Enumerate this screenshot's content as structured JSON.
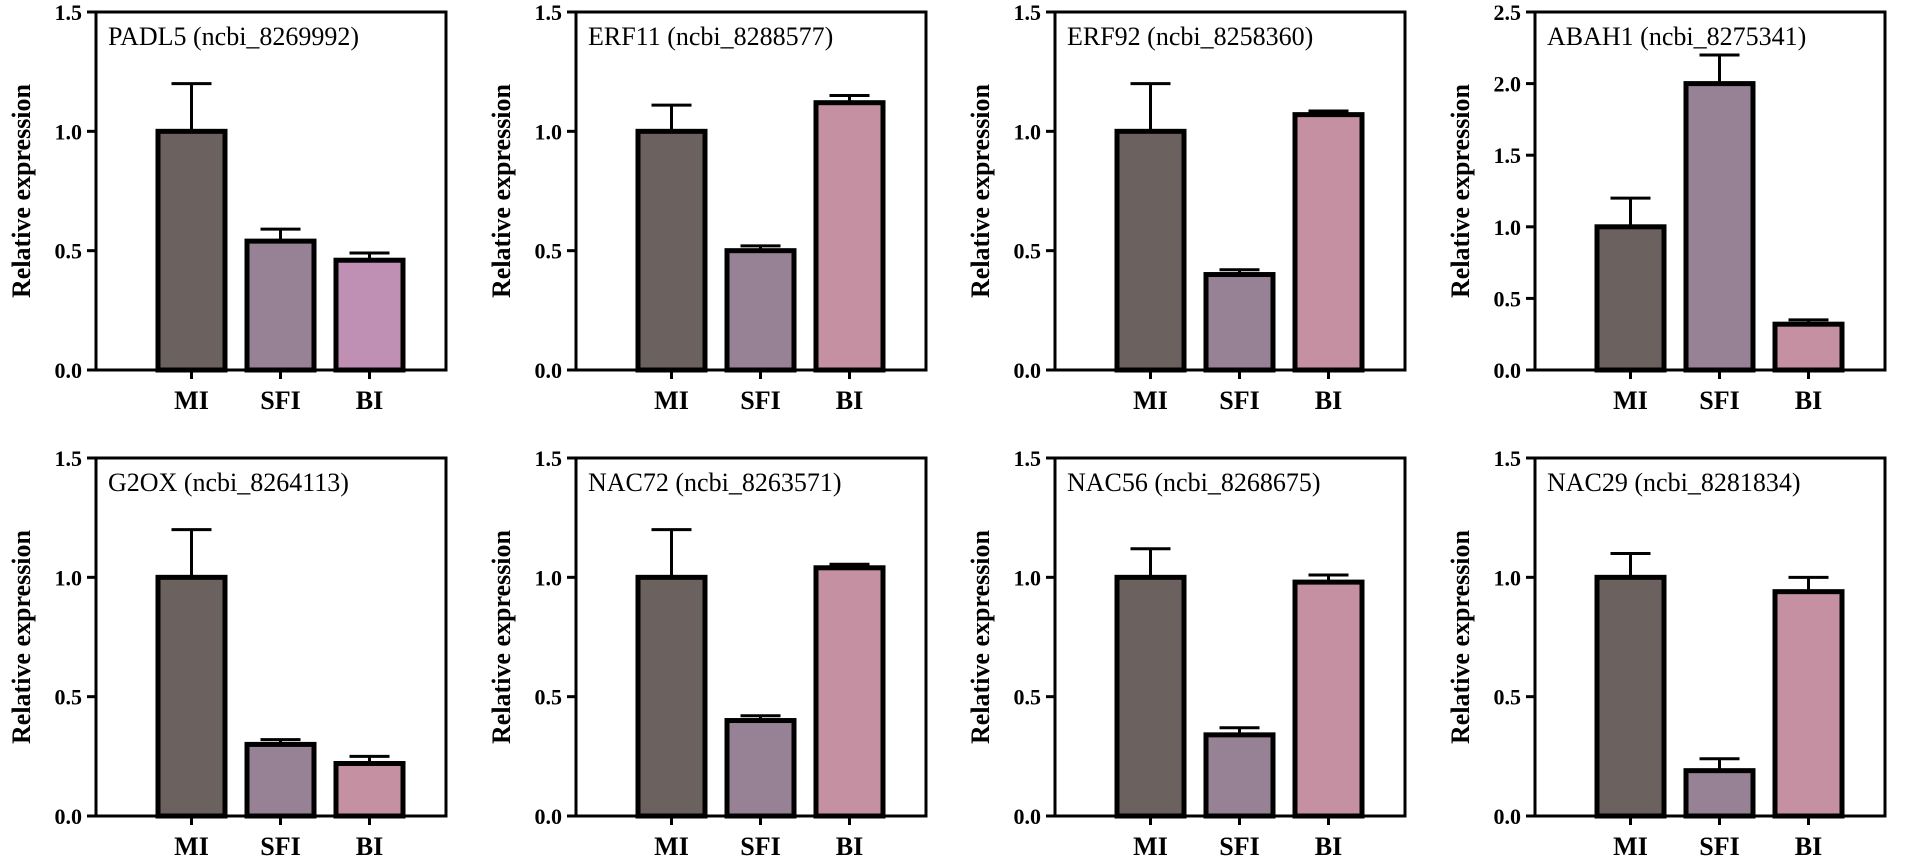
{
  "chart_data": [
    {
      "type": "bar",
      "title": "PADL5 (ncbi_8269992)",
      "ylabel": "Relative expression",
      "categories": [
        "MI",
        "SFI",
        "BI"
      ],
      "values": [
        1.0,
        0.54,
        0.46
      ],
      "errors": [
        0.2,
        0.05,
        0.03
      ],
      "colors": [
        "#6b615e",
        "#968294",
        "#c090b4"
      ],
      "ylim": [
        0,
        1.5
      ],
      "yticks": [
        "0.0",
        "0.5",
        "1.0",
        "1.5"
      ]
    },
    {
      "type": "bar",
      "title": "ERF11 (ncbi_8288577)",
      "ylabel": "Relative expression",
      "categories": [
        "MI",
        "SFI",
        "BI"
      ],
      "values": [
        1.0,
        0.5,
        1.12
      ],
      "errors": [
        0.11,
        0.02,
        0.03
      ],
      "colors": [
        "#6b615e",
        "#968294",
        "#c490a2"
      ],
      "ylim": [
        0,
        1.5
      ],
      "yticks": [
        "0.0",
        "0.5",
        "1.0",
        "1.5"
      ]
    },
    {
      "type": "bar",
      "title": "ERF92 (ncbi_8258360)",
      "ylabel": "Relative expression",
      "categories": [
        "MI",
        "SFI",
        "BI"
      ],
      "values": [
        1.0,
        0.4,
        1.07
      ],
      "errors": [
        0.2,
        0.02,
        0.015
      ],
      "colors": [
        "#6b615e",
        "#968294",
        "#c490a2"
      ],
      "ylim": [
        0,
        1.5
      ],
      "yticks": [
        "0.0",
        "0.5",
        "1.0",
        "1.5"
      ]
    },
    {
      "type": "bar",
      "title": "ABAH1 (ncbi_8275341)",
      "ylabel": "Relative expression",
      "categories": [
        "MI",
        "SFI",
        "BI"
      ],
      "values": [
        1.0,
        2.0,
        0.32
      ],
      "errors": [
        0.2,
        0.2,
        0.03
      ],
      "colors": [
        "#6b615e",
        "#968294",
        "#c490a2"
      ],
      "ylim": [
        0,
        2.5
      ],
      "yticks": [
        "0.0",
        "0.5",
        "1.0",
        "1.5",
        "2.0",
        "2.5"
      ]
    },
    {
      "type": "bar",
      "title": "G2OX (ncbi_8264113)",
      "ylabel": "Relative expression",
      "categories": [
        "MI",
        "SFI",
        "BI"
      ],
      "values": [
        1.0,
        0.3,
        0.22
      ],
      "errors": [
        0.2,
        0.02,
        0.03
      ],
      "colors": [
        "#6b615e",
        "#968294",
        "#c490a2"
      ],
      "ylim": [
        0,
        1.5
      ],
      "yticks": [
        "0.0",
        "0.5",
        "1.0",
        "1.5"
      ]
    },
    {
      "type": "bar",
      "title": "NAC72 (ncbi_8263571)",
      "ylabel": "Relative expression",
      "categories": [
        "MI",
        "SFI",
        "BI"
      ],
      "values": [
        1.0,
        0.4,
        1.04
      ],
      "errors": [
        0.2,
        0.02,
        0.015
      ],
      "colors": [
        "#6b615e",
        "#968294",
        "#c490a2"
      ],
      "ylim": [
        0,
        1.5
      ],
      "yticks": [
        "0.0",
        "0.5",
        "1.0",
        "1.5"
      ]
    },
    {
      "type": "bar",
      "title": "NAC56 (ncbi_8268675)",
      "ylabel": "Relative expression",
      "categories": [
        "MI",
        "SFI",
        "BI"
      ],
      "values": [
        1.0,
        0.34,
        0.98
      ],
      "errors": [
        0.12,
        0.03,
        0.03
      ],
      "colors": [
        "#6b615e",
        "#968294",
        "#c490a2"
      ],
      "ylim": [
        0,
        1.5
      ],
      "yticks": [
        "0.0",
        "0.5",
        "1.0",
        "1.5"
      ]
    },
    {
      "type": "bar",
      "title": "NAC29 (ncbi_8281834)",
      "ylabel": "Relative expression",
      "categories": [
        "MI",
        "SFI",
        "BI"
      ],
      "values": [
        1.0,
        0.19,
        0.94
      ],
      "errors": [
        0.1,
        0.05,
        0.06
      ],
      "colors": [
        "#6b615e",
        "#968294",
        "#c490a2"
      ],
      "ylim": [
        0,
        1.5
      ],
      "yticks": [
        "0.0",
        "0.5",
        "1.0",
        "1.5"
      ]
    }
  ]
}
